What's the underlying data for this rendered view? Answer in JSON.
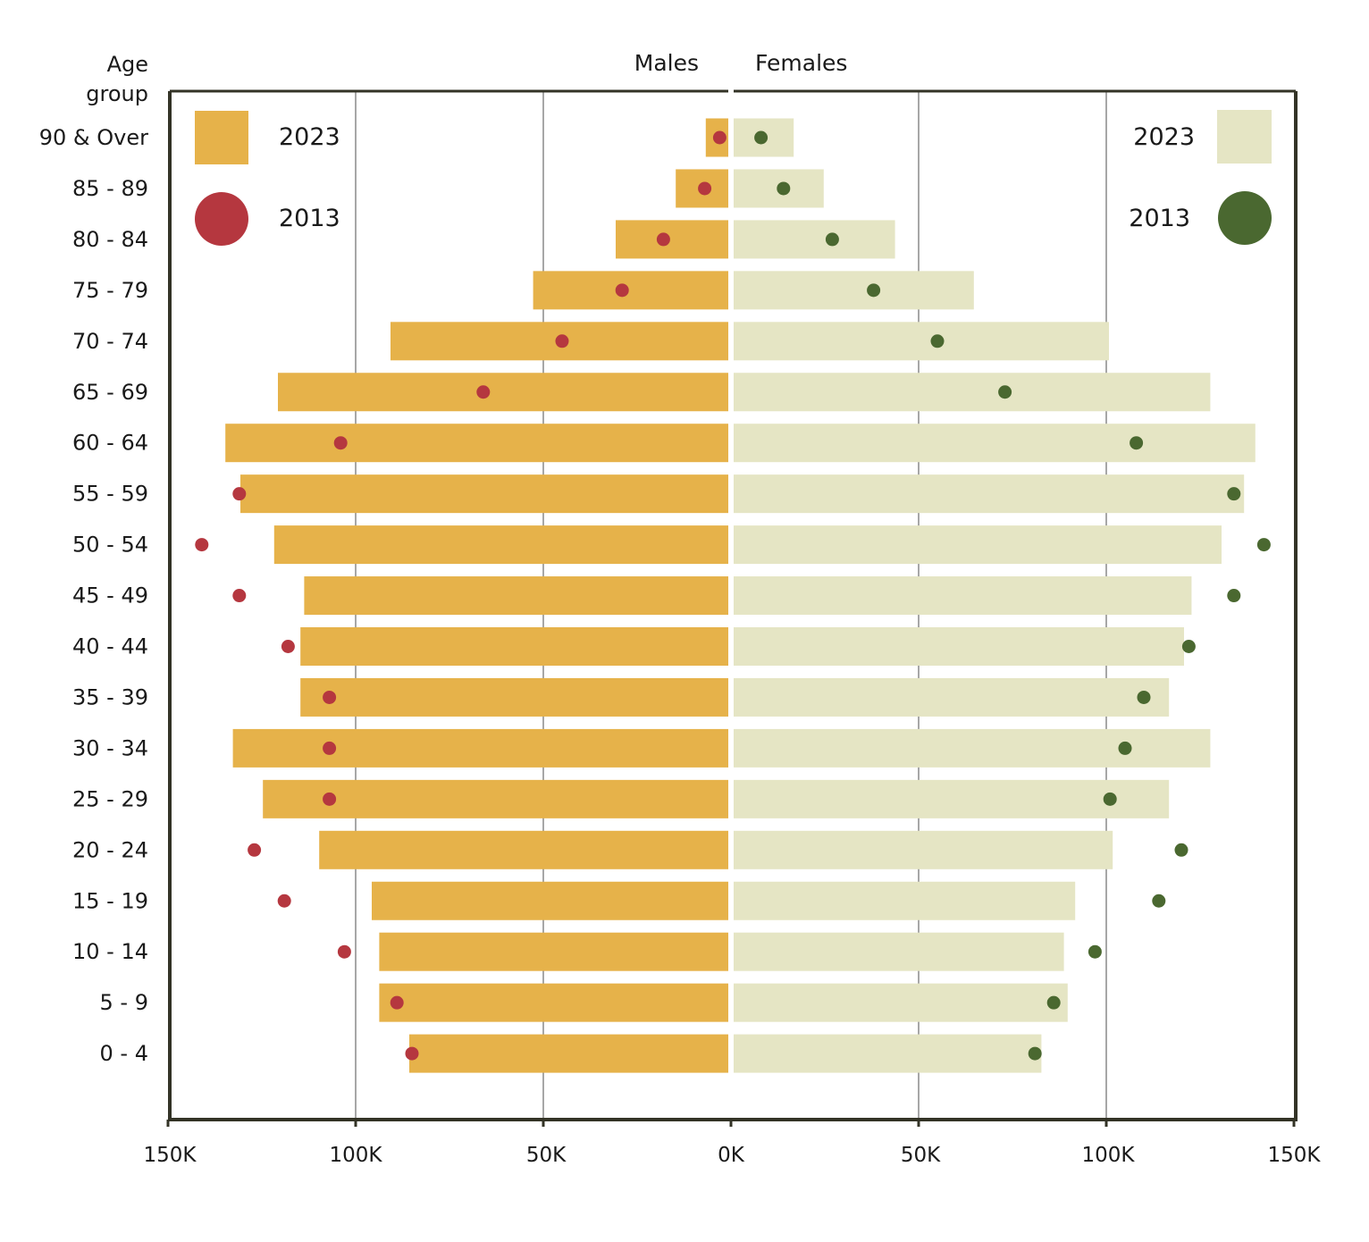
{
  "chart_data": {
    "type": "bar",
    "subtype": "population-pyramid",
    "y_axis_title": "Age group",
    "left_header": "Males",
    "right_header": "Females",
    "categories": [
      "90 & Over",
      "85 - 89",
      "80 - 84",
      "75 - 79",
      "70 - 74",
      "65 - 69",
      "60 - 64",
      "55 - 59",
      "50 - 54",
      "45 - 49",
      "40 - 44",
      "35 - 39",
      "30 - 34",
      "25 - 29",
      "20 - 24",
      "15 - 19",
      "10 - 14",
      "5 - 9",
      "0 - 4"
    ],
    "x_ticks": [
      "150K",
      "100K",
      "50K",
      "0K",
      "50K",
      "100K",
      "150K"
    ],
    "xlim": [
      -150000,
      150000
    ],
    "grid_values": [
      -100000,
      -50000,
      50000,
      100000
    ],
    "legend": {
      "males": [
        {
          "label": "2023",
          "kind": "bar",
          "color": "#e6b24a"
        },
        {
          "label": "2013",
          "kind": "dot",
          "color": "#b5373f"
        }
      ],
      "females": [
        {
          "label": "2023",
          "kind": "bar",
          "color": "#e5e5c4"
        },
        {
          "label": "2013",
          "kind": "dot",
          "color": "#4a6830"
        }
      ]
    },
    "series": [
      {
        "name": "Males 2023",
        "kind": "bar",
        "side": "left",
        "color": "#e6b24a",
        "values": [
          6000,
          14000,
          30000,
          52000,
          90000,
          120000,
          134000,
          130000,
          121000,
          113000,
          114000,
          114000,
          132000,
          124000,
          109000,
          95000,
          93000,
          93000,
          85000
        ]
      },
      {
        "name": "Males 2013",
        "kind": "dot",
        "side": "left",
        "color": "#b5373f",
        "values": [
          3000,
          7000,
          18000,
          29000,
          45000,
          66000,
          104000,
          131000,
          141000,
          131000,
          118000,
          107000,
          107000,
          107000,
          127000,
          119000,
          103000,
          89000,
          85000
        ]
      },
      {
        "name": "Females 2023",
        "kind": "bar",
        "side": "right",
        "color": "#e5e5c4",
        "values": [
          16000,
          24000,
          43000,
          64000,
          100000,
          127000,
          139000,
          136000,
          130000,
          122000,
          120000,
          116000,
          127000,
          116000,
          101000,
          91000,
          88000,
          89000,
          82000
        ]
      },
      {
        "name": "Females 2013",
        "kind": "dot",
        "side": "right",
        "color": "#4a6830",
        "values": [
          8000,
          14000,
          27000,
          38000,
          55000,
          73000,
          108000,
          134000,
          142000,
          134000,
          122000,
          110000,
          105000,
          101000,
          120000,
          114000,
          97000,
          86000,
          81000
        ]
      }
    ]
  }
}
